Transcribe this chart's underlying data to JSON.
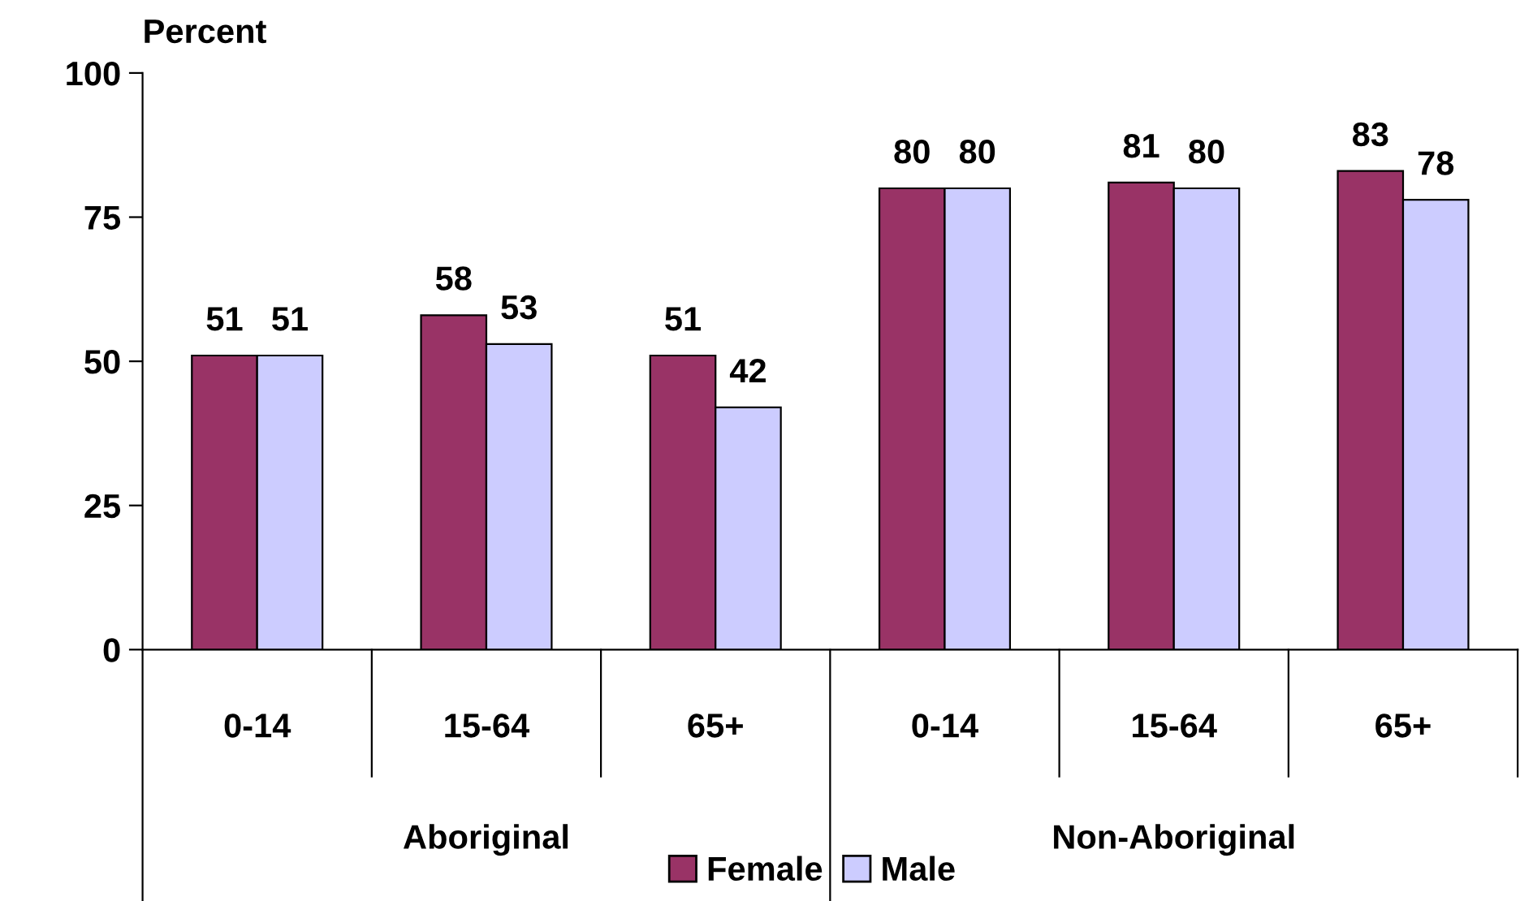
{
  "chart_data": {
    "type": "bar",
    "ylabel": "Percent",
    "categories": [
      "0-14",
      "15-64",
      "65+",
      "0-14",
      "15-64",
      "65+"
    ],
    "series": [
      {
        "name": "Female",
        "color": "#993366",
        "values": [
          51,
          58,
          51,
          80,
          81,
          83
        ]
      },
      {
        "name": "Male",
        "color": "#ccccff",
        "values": [
          51,
          53,
          42,
          80,
          80,
          78
        ]
      }
    ],
    "ylim": [
      0,
      100
    ],
    "yticks": [
      0,
      25,
      50,
      75,
      100
    ],
    "grid": false,
    "legend": "bottom",
    "data_labels": true,
    "annotations": [
      "Aboriginal",
      "Non-Aboriginal"
    ]
  }
}
